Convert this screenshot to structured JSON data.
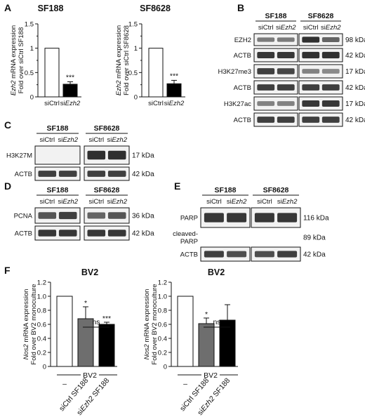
{
  "panels": [
    "A",
    "B",
    "C",
    "D",
    "E",
    "F"
  ],
  "panelA": {
    "charts": [
      {
        "type": "bar",
        "title": "SF188",
        "ylabel_lines": [
          "Ezh2 mRNA expression",
          "Fold over siCtrl SF188"
        ],
        "categories": [
          "siCtrl",
          "siEzh2"
        ],
        "values": [
          1.0,
          0.26
        ],
        "errors": [
          0,
          0.05
        ],
        "ylim": [
          0,
          1.5
        ],
        "yticks": [
          "0",
          "0.5",
          "1",
          "1.5"
        ],
        "yticks_minor": [
          0.25,
          0.75,
          1.25
        ],
        "significance": [
          "",
          "***"
        ],
        "colors": [
          "#ffffff",
          "#000000"
        ]
      },
      {
        "type": "bar",
        "title": "SF8628",
        "ylabel_lines": [
          "Ezh2 mRNA expression",
          "Fold over siCtrl SF8628"
        ],
        "categories": [
          "siCtrl",
          "siEzh2"
        ],
        "values": [
          1.0,
          0.27
        ],
        "errors": [
          0,
          0.07
        ],
        "ylim": [
          0,
          1.5
        ],
        "yticks": [
          "0",
          "0.5",
          "1",
          "1.5"
        ],
        "yticks_minor": [
          0.25,
          0.75,
          1.25
        ],
        "significance": [
          "",
          "***"
        ],
        "colors": [
          "#ffffff",
          "#000000"
        ]
      }
    ]
  },
  "panelB": {
    "groups": [
      "SF188",
      "SF8628"
    ],
    "lanes": [
      "siCtrl",
      "siEzh2",
      "siCtrl",
      "siEzh2"
    ],
    "rows": [
      {
        "label": "EZH2",
        "kda": "98 kDa",
        "intensity": [
          0.45,
          0.45,
          0.95,
          0.6
        ]
      },
      {
        "label": "ACTB",
        "kda": "42 kDa",
        "intensity": [
          0.9,
          0.9,
          0.95,
          0.95
        ]
      },
      {
        "label": "H3K27me3",
        "kda": "17 kDa",
        "intensity": [
          0.85,
          0.8,
          0.4,
          0.35
        ]
      },
      {
        "label": "ACTB",
        "kda": "42 kDa",
        "intensity": [
          0.85,
          0.85,
          0.85,
          0.85
        ]
      },
      {
        "label": "H3K27ac",
        "kda": "17 kDa",
        "intensity": [
          0.4,
          0.4,
          0.9,
          0.9
        ]
      },
      {
        "label": "ACTB",
        "kda": "42 kDa",
        "intensity": [
          0.85,
          0.85,
          0.85,
          0.85
        ]
      }
    ]
  },
  "panelC": {
    "groups": [
      "SF188",
      "SF8628"
    ],
    "lanes": [
      "siCtrl",
      "siEzh2",
      "siCtrl",
      "siEzh2"
    ],
    "rows": [
      {
        "label": "H3K27M",
        "kda": "17 kDa",
        "intensity": [
          0,
          0,
          0.95,
          0.95
        ]
      },
      {
        "label": "ACTB",
        "kda": "42 kDa",
        "intensity": [
          0.85,
          0.85,
          0.85,
          0.85
        ]
      }
    ]
  },
  "panelD": {
    "groups": [
      "SF188",
      "SF8628"
    ],
    "lanes": [
      "siCtrl",
      "siEzh2",
      "siCtrl",
      "siEzh2"
    ],
    "rows": [
      {
        "label": "PCNA",
        "kda": "36 kDa",
        "intensity": [
          0.7,
          0.85,
          0.6,
          0.7
        ]
      },
      {
        "label": "ACTB",
        "kda": "42 kDa",
        "intensity": [
          0.9,
          0.9,
          0.9,
          0.9
        ]
      }
    ]
  },
  "panelE": {
    "groups": [
      "SF188",
      "SF8628"
    ],
    "lanes": [
      "siCtrl",
      "siEzh2",
      "siCtrl",
      "siEzh2"
    ],
    "rows": [
      {
        "label": "PARP",
        "kda": "116 kDa",
        "intensity": [
          0.9,
          0.9,
          0.9,
          0.9
        ]
      },
      {
        "label_lines": [
          "cleaved-",
          "PARP"
        ],
        "kda": "89 kDa",
        "intensity": [
          0,
          0,
          0,
          0
        ]
      },
      {
        "label": "ACTB",
        "kda": "42 kDa",
        "intensity": [
          0.85,
          0.75,
          0.75,
          0.85
        ]
      }
    ]
  },
  "panelF": {
    "charts": [
      {
        "type": "bar",
        "title": "BV2",
        "ylabel_lines": [
          "Nos2 mRNA expression",
          "Fold over BV2 monoculture"
        ],
        "categories": [
          "–",
          "siCtrl SF188",
          "siEzh2 SF188"
        ],
        "values": [
          1.0,
          0.68,
          0.6
        ],
        "errors": [
          0,
          0.17,
          0.03
        ],
        "ylim": [
          0,
          1.2
        ],
        "yticks": [
          "0",
          "0.2",
          "0.4",
          "0.6",
          "0.8",
          "1.0",
          "1.2"
        ],
        "significance": [
          "",
          "*",
          "***"
        ],
        "colors": [
          "#ffffff",
          "#6e6e6e",
          "#000000"
        ],
        "bracket_label": "ns",
        "group_label": "BV2"
      },
      {
        "type": "bar",
        "title": "BV2",
        "ylabel_lines": [
          "Nos2 mRNA expression",
          "Fold over BV2 monoculture"
        ],
        "categories": [
          "–",
          "siCtrl SF188",
          "siEzh2 SF188"
        ],
        "values": [
          1.0,
          0.61,
          0.66
        ],
        "errors": [
          0,
          0.08,
          0.22
        ],
        "ylim": [
          0,
          1.2
        ],
        "yticks": [
          "0",
          "0.2",
          "0.4",
          "0.6",
          "0.8",
          "1.0",
          "1.2"
        ],
        "significance": [
          "",
          "*",
          ""
        ],
        "colors": [
          "#ffffff",
          "#6e6e6e",
          "#000000"
        ],
        "bracket_label": "ns",
        "group_label": "BV2"
      }
    ]
  }
}
